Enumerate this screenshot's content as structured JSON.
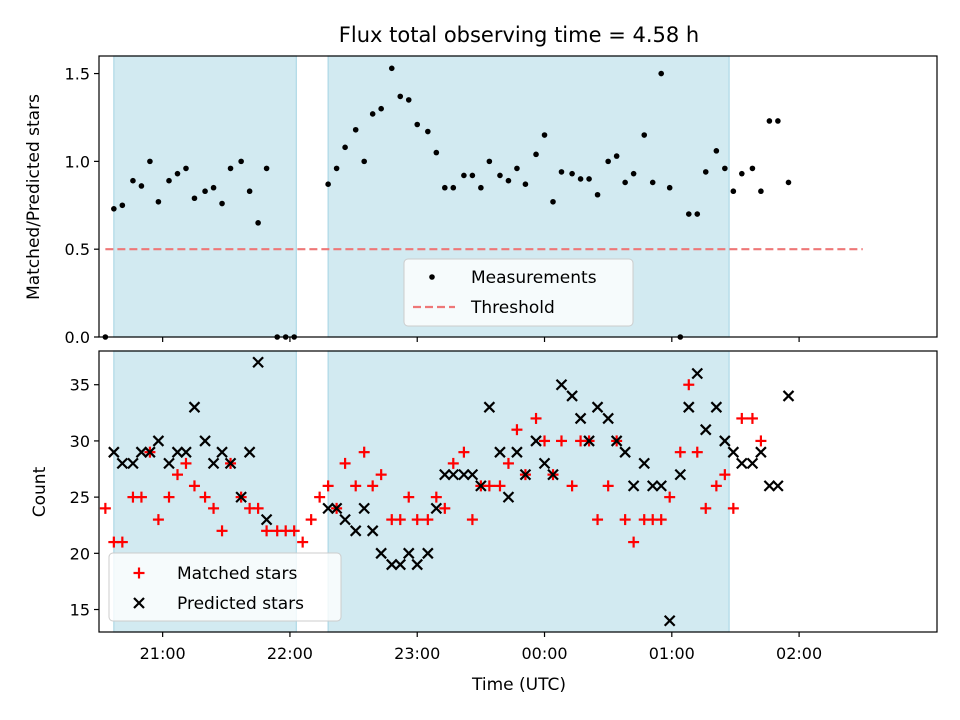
{
  "title": "Flux total observing time = 4.58 h",
  "colors": {
    "measurement": "#000000",
    "threshold": "#ee7777",
    "matched": "#ff0000",
    "predicted": "#000000",
    "shade": "#add8e6"
  },
  "chart_data": [
    {
      "type": "scatter",
      "ylabel": "Matched/Predicted stars",
      "xlabel": "",
      "xlim": [
        "20:30",
        "03:05"
      ],
      "ylim": [
        0,
        1.6
      ],
      "yticks": [
        "0.0",
        "0.5",
        "1.0",
        "1.5"
      ],
      "grid": false,
      "legend_position": "lower-center",
      "shaded_intervals": [
        [
          "20:37",
          "22:03"
        ],
        [
          "22:18",
          "01:27"
        ]
      ],
      "threshold": {
        "name": "Threshold",
        "value": 0.5,
        "x_range": [
          "20:33",
          "02:30"
        ]
      },
      "series": [
        {
          "name": "Measurements",
          "marker": "dot",
          "points": [
            [
              "20:33",
              0.0
            ],
            [
              "20:37",
              0.73
            ],
            [
              "20:41",
              0.75
            ],
            [
              "20:46",
              0.89
            ],
            [
              "20:50",
              0.86
            ],
            [
              "20:54",
              1.0
            ],
            [
              "20:58",
              0.77
            ],
            [
              "21:03",
              0.89
            ],
            [
              "21:07",
              0.93
            ],
            [
              "21:11",
              0.96
            ],
            [
              "21:15",
              0.79
            ],
            [
              "21:20",
              0.83
            ],
            [
              "21:24",
              0.85
            ],
            [
              "21:28",
              0.76
            ],
            [
              "21:32",
              0.96
            ],
            [
              "21:37",
              1.0
            ],
            [
              "21:41",
              0.83
            ],
            [
              "21:45",
              0.65
            ],
            [
              "21:49",
              0.96
            ],
            [
              "21:54",
              0.0
            ],
            [
              "21:58",
              0.0
            ],
            [
              "22:02",
              0.0
            ],
            [
              "22:18",
              0.87
            ],
            [
              "22:22",
              0.96
            ],
            [
              "22:26",
              1.08
            ],
            [
              "22:31",
              1.18
            ],
            [
              "22:35",
              1.0
            ],
            [
              "22:39",
              1.27
            ],
            [
              "22:43",
              1.3
            ],
            [
              "22:48",
              1.53
            ],
            [
              "22:52",
              1.37
            ],
            [
              "22:56",
              1.35
            ],
            [
              "23:00",
              1.21
            ],
            [
              "23:05",
              1.17
            ],
            [
              "23:09",
              1.05
            ],
            [
              "23:13",
              0.85
            ],
            [
              "23:17",
              0.85
            ],
            [
              "23:22",
              0.92
            ],
            [
              "23:26",
              0.92
            ],
            [
              "23:30",
              0.85
            ],
            [
              "23:34",
              1.0
            ],
            [
              "23:39",
              0.92
            ],
            [
              "23:43",
              0.89
            ],
            [
              "23:47",
              0.96
            ],
            [
              "23:51",
              0.87
            ],
            [
              "23:56",
              1.04
            ],
            [
              "00:00",
              1.15
            ],
            [
              "00:04",
              0.77
            ],
            [
              "00:08",
              0.94
            ],
            [
              "00:13",
              0.93
            ],
            [
              "00:17",
              0.9
            ],
            [
              "00:21",
              0.9
            ],
            [
              "00:25",
              0.81
            ],
            [
              "00:30",
              1.0
            ],
            [
              "00:34",
              1.03
            ],
            [
              "00:38",
              0.88
            ],
            [
              "00:42",
              0.93
            ],
            [
              "00:47",
              1.15
            ],
            [
              "00:51",
              0.88
            ],
            [
              "00:55",
              1.5
            ],
            [
              "00:59",
              0.85
            ],
            [
              "01:04",
              0.0
            ],
            [
              "01:08",
              0.7
            ],
            [
              "01:12",
              0.7
            ],
            [
              "01:16",
              0.94
            ],
            [
              "01:21",
              1.06
            ],
            [
              "01:25",
              0.96
            ],
            [
              "01:29",
              0.83
            ],
            [
              "01:33",
              0.93
            ],
            [
              "01:38",
              0.96
            ],
            [
              "01:42",
              0.83
            ],
            [
              "01:46",
              1.23
            ],
            [
              "01:50",
              1.23
            ],
            [
              "01:55",
              0.88
            ]
          ]
        }
      ]
    },
    {
      "type": "scatter",
      "ylabel": "Count",
      "xlabel": "Time (UTC)",
      "xlim": [
        "20:30",
        "03:05"
      ],
      "ylim": [
        13,
        38
      ],
      "yticks": [
        "15",
        "20",
        "25",
        "30",
        "35"
      ],
      "xticks": [
        "21:00",
        "22:00",
        "23:00",
        "00:00",
        "01:00",
        "02:00"
      ],
      "grid": false,
      "legend_position": "lower-left",
      "shaded_intervals": [
        [
          "20:37",
          "22:03"
        ],
        [
          "22:18",
          "01:27"
        ]
      ],
      "series": [
        {
          "name": "Matched stars",
          "marker": "plus",
          "points": [
            [
              "20:33",
              24
            ],
            [
              "20:37",
              21
            ],
            [
              "20:41",
              21
            ],
            [
              "20:46",
              25
            ],
            [
              "20:50",
              25
            ],
            [
              "20:54",
              29
            ],
            [
              "20:58",
              23
            ],
            [
              "21:03",
              25
            ],
            [
              "21:07",
              27
            ],
            [
              "21:11",
              28
            ],
            [
              "21:15",
              26
            ],
            [
              "21:20",
              25
            ],
            [
              "21:24",
              24
            ],
            [
              "21:28",
              22
            ],
            [
              "21:32",
              28
            ],
            [
              "21:37",
              25
            ],
            [
              "21:41",
              24
            ],
            [
              "21:45",
              24
            ],
            [
              "21:49",
              22
            ],
            [
              "21:54",
              22
            ],
            [
              "21:58",
              22
            ],
            [
              "22:02",
              22
            ],
            [
              "22:06",
              21
            ],
            [
              "22:10",
              23
            ],
            [
              "22:14",
              25
            ],
            [
              "22:18",
              26
            ],
            [
              "22:22",
              24
            ],
            [
              "22:26",
              28
            ],
            [
              "22:31",
              26
            ],
            [
              "22:35",
              29
            ],
            [
              "22:39",
              26
            ],
            [
              "22:43",
              27
            ],
            [
              "22:48",
              23
            ],
            [
              "22:52",
              23
            ],
            [
              "22:56",
              25
            ],
            [
              "23:00",
              23
            ],
            [
              "23:05",
              23
            ],
            [
              "23:09",
              25
            ],
            [
              "23:13",
              24
            ],
            [
              "23:17",
              28
            ],
            [
              "23:22",
              29
            ],
            [
              "23:26",
              23
            ],
            [
              "23:30",
              26
            ],
            [
              "23:34",
              26
            ],
            [
              "23:39",
              26
            ],
            [
              "23:43",
              28
            ],
            [
              "23:47",
              31
            ],
            [
              "23:51",
              27
            ],
            [
              "23:56",
              32
            ],
            [
              "00:00",
              30
            ],
            [
              "00:04",
              27
            ],
            [
              "00:08",
              30
            ],
            [
              "00:13",
              26
            ],
            [
              "00:17",
              30
            ],
            [
              "00:21",
              30
            ],
            [
              "00:25",
              23
            ],
            [
              "00:30",
              26
            ],
            [
              "00:34",
              30
            ],
            [
              "00:38",
              23
            ],
            [
              "00:42",
              21
            ],
            [
              "00:47",
              23
            ],
            [
              "00:51",
              23
            ],
            [
              "00:55",
              23
            ],
            [
              "00:59",
              25
            ],
            [
              "01:04",
              29
            ],
            [
              "01:08",
              35
            ],
            [
              "01:12",
              29
            ],
            [
              "01:16",
              24
            ],
            [
              "01:21",
              26
            ],
            [
              "01:25",
              27
            ],
            [
              "01:29",
              24
            ],
            [
              "01:33",
              32
            ],
            [
              "01:38",
              32
            ],
            [
              "01:42",
              30
            ]
          ]
        },
        {
          "name": "Predicted stars",
          "marker": "x",
          "points": [
            [
              "20:37",
              29
            ],
            [
              "20:41",
              28
            ],
            [
              "20:46",
              28
            ],
            [
              "20:50",
              29
            ],
            [
              "20:54",
              29
            ],
            [
              "20:58",
              30
            ],
            [
              "21:03",
              28
            ],
            [
              "21:07",
              29
            ],
            [
              "21:11",
              29
            ],
            [
              "21:15",
              33
            ],
            [
              "21:20",
              30
            ],
            [
              "21:24",
              28
            ],
            [
              "21:28",
              29
            ],
            [
              "21:32",
              28
            ],
            [
              "21:37",
              25
            ],
            [
              "21:41",
              29
            ],
            [
              "21:45",
              37
            ],
            [
              "21:49",
              23
            ],
            [
              "22:18",
              24
            ],
            [
              "22:22",
              24
            ],
            [
              "22:26",
              23
            ],
            [
              "22:31",
              22
            ],
            [
              "22:35",
              24
            ],
            [
              "22:39",
              22
            ],
            [
              "22:43",
              20
            ],
            [
              "22:48",
              19
            ],
            [
              "22:52",
              19
            ],
            [
              "22:56",
              20
            ],
            [
              "23:00",
              19
            ],
            [
              "23:05",
              20
            ],
            [
              "23:09",
              24
            ],
            [
              "23:13",
              27
            ],
            [
              "23:17",
              27
            ],
            [
              "23:22",
              27
            ],
            [
              "23:26",
              27
            ],
            [
              "23:30",
              26
            ],
            [
              "23:34",
              33
            ],
            [
              "23:39",
              29
            ],
            [
              "23:43",
              25
            ],
            [
              "23:47",
              29
            ],
            [
              "23:51",
              27
            ],
            [
              "23:56",
              30
            ],
            [
              "00:00",
              28
            ],
            [
              "00:04",
              27
            ],
            [
              "00:08",
              35
            ],
            [
              "00:13",
              34
            ],
            [
              "00:17",
              32
            ],
            [
              "00:21",
              30
            ],
            [
              "00:25",
              33
            ],
            [
              "00:30",
              32
            ],
            [
              "00:34",
              30
            ],
            [
              "00:38",
              29
            ],
            [
              "00:42",
              26
            ],
            [
              "00:47",
              28
            ],
            [
              "00:51",
              26
            ],
            [
              "00:55",
              26
            ],
            [
              "00:59",
              14
            ],
            [
              "01:04",
              27
            ],
            [
              "01:08",
              33
            ],
            [
              "01:12",
              36
            ],
            [
              "01:16",
              31
            ],
            [
              "01:21",
              33
            ],
            [
              "01:25",
              30
            ],
            [
              "01:29",
              29
            ],
            [
              "01:33",
              28
            ],
            [
              "01:38",
              28
            ],
            [
              "01:42",
              29
            ],
            [
              "01:46",
              26
            ],
            [
              "01:50",
              26
            ],
            [
              "01:55",
              34
            ]
          ]
        }
      ]
    }
  ]
}
